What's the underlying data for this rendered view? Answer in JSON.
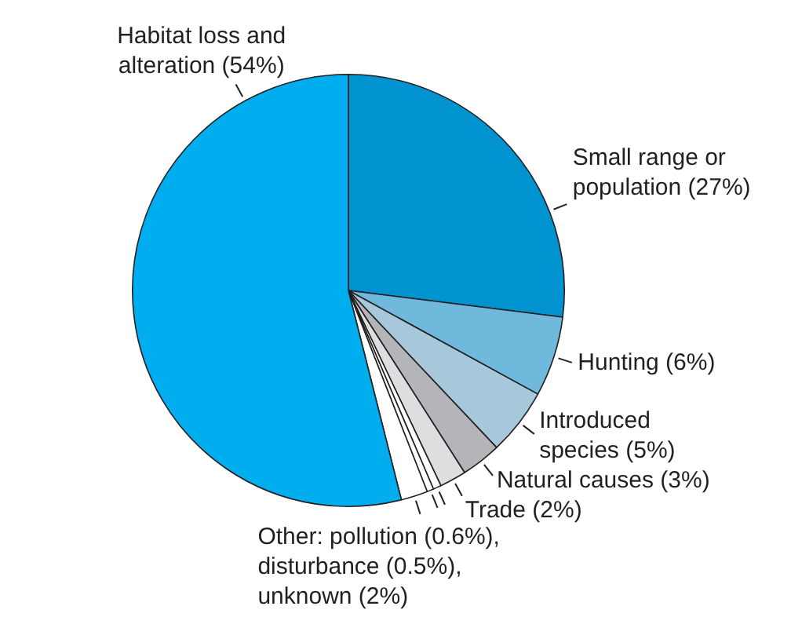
{
  "chart_data": {
    "type": "pie",
    "categories": [
      "Small range or\npopulation (27%)",
      "Hunting (6%)",
      "Introduced\nspecies (5%)",
      "Natural causes (3%)",
      "Trade (2%)",
      null,
      null,
      null,
      "Habitat loss and\nalteration (54%)"
    ],
    "values": [
      27,
      6,
      5,
      3,
      2,
      0.6,
      0.5,
      2,
      54
    ],
    "colors": [
      "#0093cf",
      "#6fb9dc",
      "#a7c8da",
      "#b4b5b8",
      "#dddee0",
      "#ffffff",
      "#ffffff",
      "#ffffff",
      "#00adee"
    ],
    "annotations": [
      "Other: pollution (0.6%),\ndisturbance (0.5%),\nunknown (2%)"
    ]
  }
}
